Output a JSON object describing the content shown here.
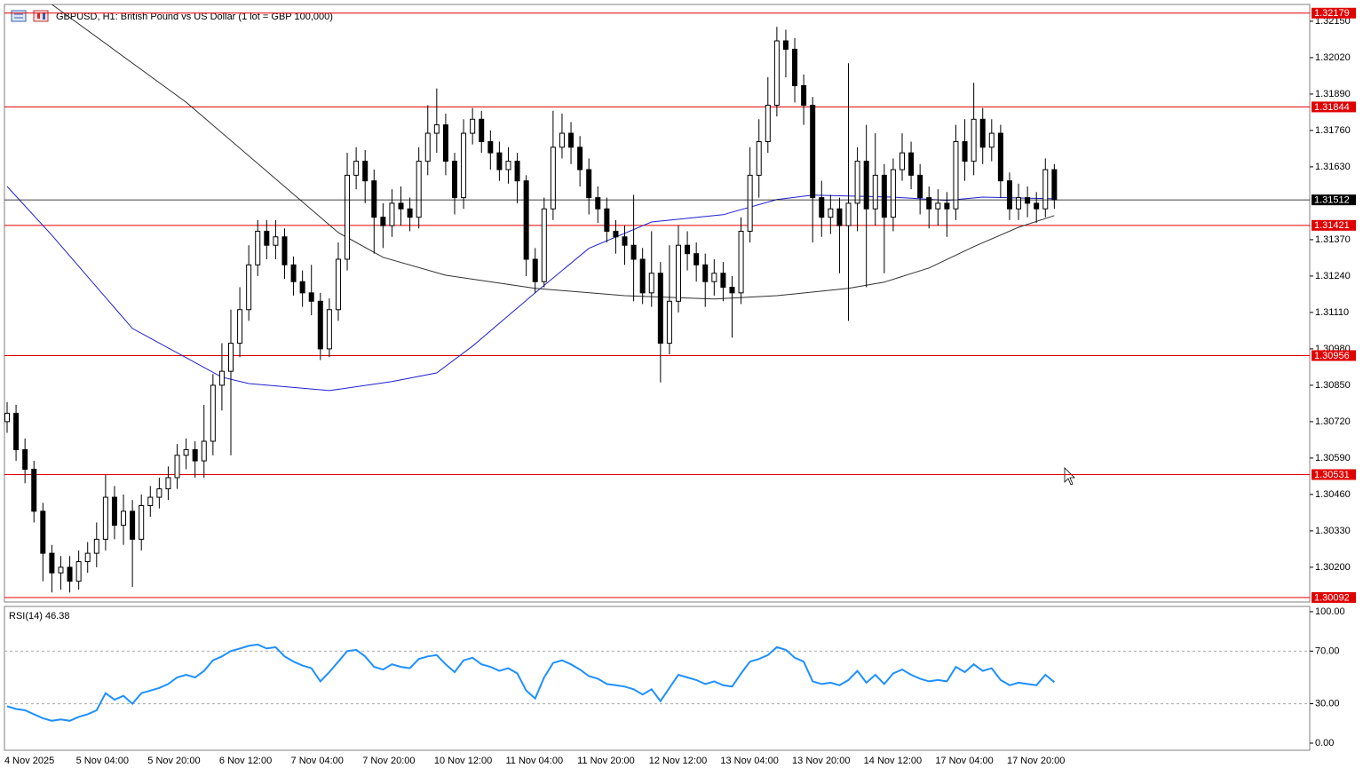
{
  "chart_data": {
    "type": "candlestick",
    "title": "GBPUSD, H1:  British Pound vs US Dollar (1 lot = GBP 100,000)",
    "categories": [
      "4 Nov 2025",
      null,
      null,
      null,
      null,
      null,
      null,
      null,
      "5 Nov 04:00",
      null,
      null,
      null,
      null,
      null,
      null,
      null,
      "5 Nov 20:00",
      null,
      null,
      null,
      null,
      null,
      null,
      null,
      "6 Nov 12:00",
      null,
      null,
      null,
      null,
      null,
      null,
      null,
      "7 Nov 04:00",
      null,
      null,
      null,
      null,
      null,
      null,
      null,
      "7 Nov 20:00",
      null,
      null,
      null,
      null,
      null,
      null,
      null,
      "10 Nov 12:00",
      null,
      null,
      null,
      null,
      null,
      null,
      null,
      "11 Nov 04:00",
      null,
      null,
      null,
      null,
      null,
      null,
      null,
      "11 Nov 20:00",
      null,
      null,
      null,
      null,
      null,
      null,
      null,
      "12 Nov 12:00",
      null,
      null,
      null,
      null,
      null,
      null,
      null,
      "13 Nov 04:00",
      null,
      null,
      null,
      null,
      null,
      null,
      null,
      "13 Nov 20:00",
      null,
      null,
      null,
      null,
      null,
      null,
      null,
      "14 Nov 12:00",
      null,
      null,
      null,
      null,
      null,
      null,
      null,
      "17 Nov 04:00",
      null,
      null,
      null,
      null,
      null,
      null,
      null,
      "17 Nov 20:00",
      null,
      null,
      null,
      null,
      null
    ],
    "open": [
      1.3072,
      1.3075,
      1.3062,
      1.3055,
      1.304,
      1.3025,
      1.3018,
      1.302,
      1.3015,
      1.3022,
      1.3025,
      1.303,
      1.3045,
      1.3035,
      1.304,
      1.303,
      1.3042,
      1.3045,
      1.3048,
      1.3052,
      1.306,
      1.3062,
      1.3058,
      1.3065,
      1.3085,
      1.309,
      1.31,
      1.3112,
      1.3128,
      1.314,
      1.3135,
      1.3138,
      1.3128,
      1.3122,
      1.3118,
      1.3115,
      1.3098,
      1.3112,
      1.313,
      1.316,
      1.3165,
      1.3158,
      1.3145,
      1.3142,
      1.315,
      1.3148,
      1.3145,
      1.3165,
      1.3175,
      1.3178,
      1.3165,
      1.3152,
      1.3175,
      1.318,
      1.3172,
      1.3168,
      1.3162,
      1.3165,
      1.3158,
      1.313,
      1.3122,
      1.3148,
      1.317,
      1.3175,
      1.317,
      1.3162,
      1.3152,
      1.3148,
      1.314,
      1.3138,
      1.3135,
      1.313,
      1.3118,
      1.3125,
      1.31,
      1.3115,
      1.3135,
      1.3132,
      1.3128,
      1.3122,
      1.3125,
      1.312,
      1.3118,
      1.314,
      1.316,
      1.3172,
      1.3185,
      1.3208,
      1.3205,
      1.3192,
      1.3185,
      1.3152,
      1.3145,
      1.3148,
      1.3142,
      1.315,
      1.3165,
      1.3148,
      1.316,
      1.3145,
      1.3162,
      1.3168,
      1.316,
      1.3152,
      1.3148,
      1.315,
      1.3148,
      1.3172,
      1.3165,
      1.318,
      1.317,
      1.3175,
      1.3158,
      1.3148,
      1.3152,
      1.315,
      1.3148,
      1.3162
    ],
    "high": [
      1.3079,
      1.3078,
      1.3066,
      1.3058,
      1.3043,
      1.3028,
      1.3024,
      1.3024,
      1.3026,
      1.3029,
      1.3036,
      1.3053,
      1.3049,
      1.3046,
      1.3044,
      1.3046,
      1.3049,
      1.3052,
      1.3056,
      1.3064,
      1.3066,
      1.3065,
      1.3078,
      1.3089,
      1.31,
      1.3112,
      1.312,
      1.3135,
      1.3144,
      1.3144,
      1.3144,
      1.3141,
      1.3131,
      1.3126,
      1.3128,
      1.3118,
      1.3116,
      1.3136,
      1.3168,
      1.317,
      1.3169,
      1.3162,
      1.315,
      1.3155,
      1.3156,
      1.3152,
      1.317,
      1.3185,
      1.3191,
      1.3182,
      1.3168,
      1.318,
      1.3184,
      1.3183,
      1.3176,
      1.3172,
      1.317,
      1.3168,
      1.316,
      1.3134,
      1.3152,
      1.3183,
      1.3182,
      1.3179,
      1.3174,
      1.3166,
      1.3156,
      1.3152,
      1.3144,
      1.3142,
      1.3153,
      1.3134,
      1.314,
      1.3129,
      1.3135,
      1.3142,
      1.314,
      1.3136,
      1.3132,
      1.313,
      1.3129,
      1.3124,
      1.3145,
      1.317,
      1.318,
      1.3195,
      1.3213,
      1.3212,
      1.3209,
      1.3196,
      1.3188,
      1.3158,
      1.3153,
      1.3152,
      1.32,
      1.317,
      1.3178,
      1.3175,
      1.3164,
      1.3166,
      1.3175,
      1.3172,
      1.3164,
      1.3156,
      1.3155,
      1.3154,
      1.3178,
      1.318,
      1.3193,
      1.3184,
      1.318,
      1.3178,
      1.3161,
      1.3157,
      1.3156,
      1.3154,
      1.3166,
      1.3164
    ],
    "low": [
      1.3068,
      1.3058,
      1.305,
      1.3036,
      1.3015,
      1.3011,
      1.3012,
      1.3011,
      1.3012,
      1.3018,
      1.302,
      1.3026,
      1.303,
      1.3028,
      1.3013,
      1.3026,
      1.3038,
      1.3041,
      1.3044,
      1.3048,
      1.3055,
      1.3052,
      1.3052,
      1.306,
      1.3076,
      1.306,
      1.3095,
      1.3108,
      1.3124,
      1.313,
      1.313,
      1.3123,
      1.3117,
      1.3113,
      1.311,
      1.3094,
      1.3095,
      1.3108,
      1.3126,
      1.3155,
      1.315,
      1.3132,
      1.3134,
      1.3138,
      1.3142,
      1.314,
      1.3141,
      1.316,
      1.3168,
      1.316,
      1.3146,
      1.3148,
      1.3171,
      1.3168,
      1.3162,
      1.3158,
      1.3157,
      1.315,
      1.3124,
      1.3118,
      1.312,
      1.3144,
      1.3166,
      1.3164,
      1.3156,
      1.3146,
      1.3143,
      1.3136,
      1.3132,
      1.3128,
      1.3115,
      1.3114,
      1.3113,
      1.3086,
      1.3096,
      1.3111,
      1.3126,
      1.3122,
      1.3113,
      1.3117,
      1.3115,
      1.3102,
      1.3114,
      1.3136,
      1.3152,
      1.3168,
      1.3181,
      1.3195,
      1.3186,
      1.3178,
      1.3136,
      1.3138,
      1.3139,
      1.3125,
      1.3108,
      1.314,
      1.312,
      1.3142,
      1.3125,
      1.314,
      1.3158,
      1.3155,
      1.3146,
      1.3141,
      1.3142,
      1.3138,
      1.3144,
      1.3158,
      1.316,
      1.3164,
      1.3165,
      1.3152,
      1.3144,
      1.3144,
      1.3145,
      1.3143,
      1.3145,
      1.3148
    ],
    "close": [
      1.3075,
      1.3062,
      1.3055,
      1.304,
      1.3025,
      1.3018,
      1.302,
      1.3015,
      1.3022,
      1.3025,
      1.303,
      1.3045,
      1.3035,
      1.304,
      1.303,
      1.3042,
      1.3045,
      1.3048,
      1.3052,
      1.306,
      1.3062,
      1.3058,
      1.3065,
      1.3085,
      1.309,
      1.31,
      1.3112,
      1.3128,
      1.314,
      1.3135,
      1.3138,
      1.3128,
      1.3122,
      1.3118,
      1.3115,
      1.3098,
      1.3112,
      1.313,
      1.316,
      1.3165,
      1.3158,
      1.3145,
      1.3142,
      1.315,
      1.3148,
      1.3145,
      1.3165,
      1.3175,
      1.3178,
      1.3165,
      1.3152,
      1.3175,
      1.318,
      1.3172,
      1.3168,
      1.3162,
      1.3165,
      1.3158,
      1.313,
      1.3122,
      1.3148,
      1.317,
      1.3175,
      1.317,
      1.3162,
      1.3152,
      1.3148,
      1.314,
      1.3138,
      1.3135,
      1.313,
      1.3118,
      1.3125,
      1.31,
      1.3115,
      1.3135,
      1.3132,
      1.3128,
      1.3122,
      1.3125,
      1.312,
      1.3118,
      1.314,
      1.316,
      1.3172,
      1.3185,
      1.3208,
      1.3205,
      1.3192,
      1.3185,
      1.3152,
      1.3145,
      1.3148,
      1.3142,
      1.315,
      1.3165,
      1.3148,
      1.316,
      1.3145,
      1.3162,
      1.3168,
      1.316,
      1.3152,
      1.3148,
      1.315,
      1.3148,
      1.3172,
      1.3165,
      1.318,
      1.317,
      1.3175,
      1.3158,
      1.3148,
      1.3152,
      1.315,
      1.3148,
      1.3162,
      1.31512
    ],
    "bull_color": "#ffffff",
    "bear_color": "#000000",
    "wick_color": "#000000",
    "moving_averages": [
      {
        "color": "#1f1fd0",
        "x": [
          0,
          5,
          14,
          24,
          27,
          36,
          43,
          48,
          52,
          59,
          65,
          72,
          80,
          86,
          90,
          99,
          105,
          109,
          117
        ],
        "values": [
          1.3156,
          1.31386,
          1.31053,
          1.30879,
          1.30856,
          1.30831,
          1.30863,
          1.30894,
          1.3099,
          1.3118,
          1.31339,
          1.31433,
          1.31459,
          1.31513,
          1.31529,
          1.31522,
          1.3151,
          1.31522,
          1.31516
        ]
      },
      {
        "color": "#303030",
        "x": [
          5,
          20,
          37,
          42,
          49,
          59,
          69,
          79,
          86,
          94,
          98,
          103,
          108,
          113,
          117
        ],
        "values": [
          1.3221,
          1.31861,
          1.31395,
          1.31307,
          1.31243,
          1.31196,
          1.3117,
          1.31158,
          1.3117,
          1.31196,
          1.31218,
          1.31269,
          1.31345,
          1.31414,
          1.31456
        ]
      }
    ],
    "levels": [
      1.32179,
      1.31844,
      1.31421,
      1.30956,
      1.30531,
      1.30092
    ],
    "level_color": "#e00000",
    "ylim": [
      1.30076,
      1.3221
    ],
    "yticks": [
      {
        "value": 1.3215,
        "label": "1.32150"
      },
      {
        "value": 1.3202,
        "label": "1.32020"
      },
      {
        "value": 1.3189,
        "label": "1.31890"
      },
      {
        "value": 1.3176,
        "label": "1.31760"
      },
      {
        "value": 1.3163,
        "label": "1.31630"
      },
      {
        "value": 1.3137,
        "label": "1.31370"
      },
      {
        "value": 1.3124,
        "label": "1.31240"
      },
      {
        "value": 1.3111,
        "label": "1.31110"
      },
      {
        "value": 1.3098,
        "label": "1.30980"
      },
      {
        "value": 1.3085,
        "label": "1.30850"
      },
      {
        "value": 1.3072,
        "label": "1.30720"
      },
      {
        "value": 1.3059,
        "label": "1.30590"
      },
      {
        "value": 1.3046,
        "label": "1.30460"
      },
      {
        "value": 1.3033,
        "label": "1.30330"
      },
      {
        "value": 1.302,
        "label": "1.30200"
      }
    ],
    "rsi": {
      "title": "RSI(14)",
      "color": "#1e90ff",
      "values": [
        28,
        26,
        25,
        22,
        19,
        17,
        18,
        17,
        20,
        22,
        25,
        38,
        33,
        36,
        30,
        38,
        40,
        42,
        45,
        50,
        52,
        50,
        55,
        63,
        66,
        70,
        72,
        74,
        75,
        72,
        73,
        66,
        62,
        59,
        57,
        47,
        54,
        62,
        70,
        71,
        66,
        58,
        56,
        60,
        58,
        57,
        64,
        66,
        67,
        60,
        54,
        63,
        65,
        60,
        58,
        55,
        57,
        53,
        40,
        34,
        50,
        61,
        63,
        60,
        56,
        51,
        49,
        45,
        44,
        43,
        41,
        37,
        41,
        32,
        42,
        52,
        50,
        48,
        45,
        47,
        44,
        43,
        53,
        62,
        64,
        67,
        73,
        71,
        65,
        62,
        47,
        45,
        46,
        44,
        48,
        55,
        46,
        52,
        45,
        53,
        56,
        52,
        49,
        47,
        48,
        47,
        58,
        54,
        60,
        55,
        57,
        48,
        44,
        46,
        45,
        44,
        52,
        46.38
      ],
      "ylim": [
        -5.4,
        104
      ],
      "yticks": [
        {
          "value": 100,
          "label": "100.00"
        },
        {
          "value": 70,
          "label": "70.00"
        },
        {
          "value": 30,
          "label": "30.00"
        },
        {
          "value": 0,
          "label": "0.00"
        }
      ]
    }
  }
}
